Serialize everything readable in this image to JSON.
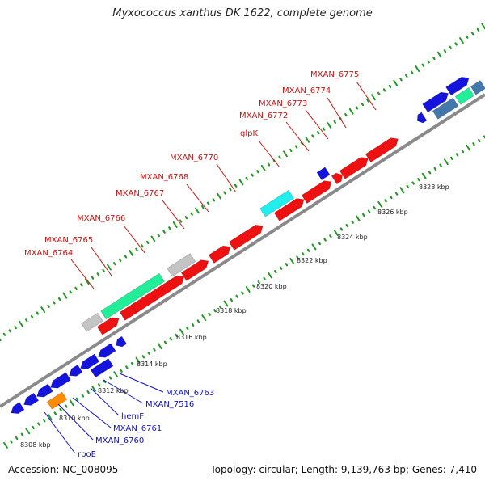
{
  "title": "Myxococcus xanthus DK 1622, complete genome",
  "footer": {
    "accession": "Accession: NC_008095",
    "summary": "Topology: circular; Length: 9,139,763 bp; Genes: 7,410"
  },
  "colors": {
    "red": "#ee1111",
    "blue": "#1414dd",
    "gray": "#c4c4c4",
    "green": "#22ee99",
    "cyan": "#22eeee",
    "orange": "#ff8c00",
    "steel": "#4477aa",
    "backbone": "#888888",
    "tick": "#229922",
    "label_red": "#d01010",
    "label_blue": "#1010c8"
  },
  "scale_labels": [
    "8308 kbp",
    "8310 kbp",
    "8312 kbp",
    "8314 kbp",
    "8316 kbp",
    "8318 kbp",
    "8320 kbp",
    "8322 kbp",
    "8324 kbp",
    "8326 kbp",
    "8328 kbp"
  ],
  "gene_labels_upper": [
    "MXAN_6775",
    "MXAN_6774",
    "MXAN_6773",
    "MXAN_6772",
    "glpK",
    "MXAN_6770",
    "MXAN_6768",
    "MXAN_6767",
    "MXAN_6766",
    "MXAN_6765",
    "MXAN_6764"
  ],
  "gene_labels_lower": [
    "MXAN_6763",
    "MXAN_7516",
    "hemF",
    "MXAN_6761",
    "MXAN_6760",
    "rpoE"
  ]
}
